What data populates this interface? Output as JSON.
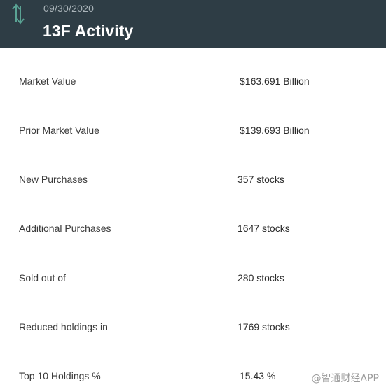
{
  "header": {
    "date": "09/30/2020",
    "title": "13F Activity",
    "icon": "vertical-arrows-icon",
    "icon_color": "#5aa394",
    "background": "#2e3d45"
  },
  "rows": [
    {
      "label": "Market Value",
      "value": "$163.691 Billion"
    },
    {
      "label": "Prior Market Value",
      "value": "$139.693 Billion"
    },
    {
      "label": "New Purchases",
      "value": "357 stocks"
    },
    {
      "label": "Additional Purchases",
      "value": "1647 stocks"
    },
    {
      "label": "Sold out of",
      "value": "280 stocks"
    },
    {
      "label": "Reduced holdings in",
      "value": "1769 stocks"
    },
    {
      "label": "Top 10 Holdings %",
      "value": "15.43 %"
    }
  ],
  "watermark": "@智通财经APP"
}
